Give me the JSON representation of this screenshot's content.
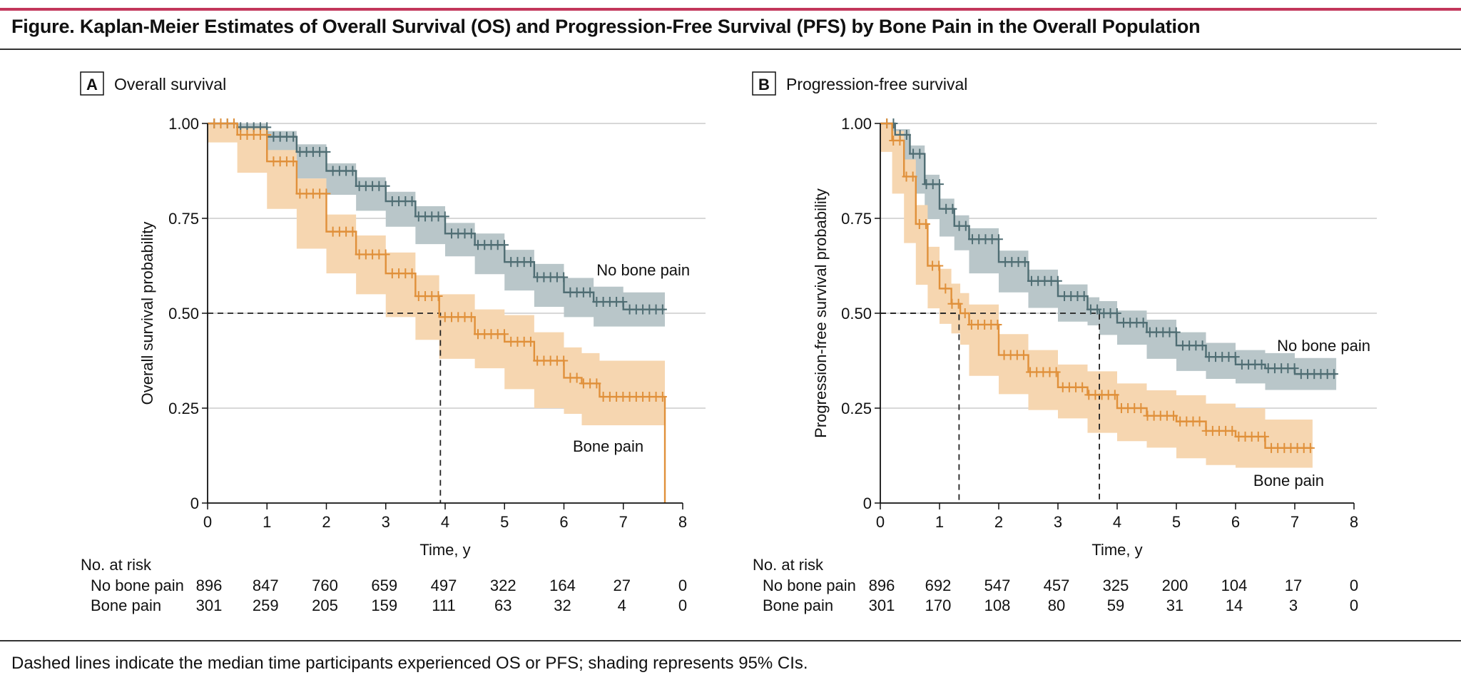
{
  "figure": {
    "title": "Figure. Kaplan-Meier Estimates of Overall Survival (OS) and Progression-Free Survival (PFS) by Bone Pain in the Overall Population",
    "footnote": "Dashed lines indicate the median time participants experienced OS or PFS; shading represents 95% CIs."
  },
  "colors": {
    "accent_rule": "#c2375b",
    "no_bone_pain": "#4f6d73",
    "no_bone_pain_ci": "#b9c6c9",
    "bone_pain": "#e0903a",
    "bone_pain_ci": "#f6d6b0",
    "grid": "#cccccc"
  },
  "chart_data": [
    {
      "type": "line",
      "panel_letter": "A",
      "title": "Overall survival",
      "xlabel": "Time, y",
      "ylabel": "Overall survival probability",
      "xlim": [
        0,
        8
      ],
      "ylim": [
        0,
        1
      ],
      "x_ticks": [
        "0",
        "1",
        "2",
        "3",
        "4",
        "5",
        "6",
        "7",
        "8"
      ],
      "y_ticks": [
        "0",
        "0.25",
        "0.50",
        "0.75",
        "1.00"
      ],
      "grid": "horizontal",
      "series": [
        {
          "name": "No bone pain",
          "label_pos": [
            6.55,
            0.6
          ],
          "x": [
            0,
            0.5,
            1.0,
            1.5,
            2.0,
            2.5,
            3.0,
            3.5,
            4.0,
            4.5,
            5.0,
            5.5,
            6.0,
            6.5,
            7.0,
            7.4,
            7.7
          ],
          "y": [
            1.0,
            0.99,
            0.965,
            0.925,
            0.875,
            0.835,
            0.795,
            0.755,
            0.71,
            0.68,
            0.635,
            0.595,
            0.555,
            0.53,
            0.51,
            0.51,
            0.51
          ],
          "ci_lower": [
            1.0,
            0.98,
            0.95,
            0.905,
            0.855,
            0.812,
            0.77,
            0.728,
            0.682,
            0.65,
            0.603,
            0.56,
            0.517,
            0.49,
            0.465,
            0.465,
            0.465
          ],
          "ci_upper": [
            1.0,
            1.0,
            0.98,
            0.945,
            0.895,
            0.858,
            0.82,
            0.782,
            0.738,
            0.71,
            0.667,
            0.63,
            0.593,
            0.57,
            0.555,
            0.555,
            0.555
          ]
        },
        {
          "name": "Bone pain",
          "label_pos": [
            6.15,
            0.135
          ],
          "x": [
            0,
            0.5,
            1.0,
            1.5,
            2.0,
            2.5,
            3.0,
            3.5,
            3.9,
            4.5,
            5.0,
            5.5,
            6.0,
            6.3,
            6.6,
            7.0,
            7.4,
            7.7
          ],
          "y": [
            1.0,
            0.97,
            0.9,
            0.815,
            0.715,
            0.655,
            0.605,
            0.545,
            0.49,
            0.445,
            0.425,
            0.375,
            0.33,
            0.315,
            0.28,
            0.28,
            0.28,
            0.28
          ],
          "ci_lower": [
            1.0,
            0.95,
            0.87,
            0.775,
            0.67,
            0.605,
            0.55,
            0.49,
            0.43,
            0.38,
            0.355,
            0.3,
            0.25,
            0.235,
            0.205,
            0.205,
            0.205,
            0.205
          ],
          "ci_upper": [
            1.0,
            0.99,
            0.93,
            0.855,
            0.76,
            0.705,
            0.66,
            0.6,
            0.55,
            0.51,
            0.495,
            0.45,
            0.41,
            0.395,
            0.375,
            0.375,
            0.375,
            0.375
          ],
          "drop_to_zero_at": 7.7
        }
      ],
      "medians": [
        3.92
      ],
      "at_risk": {
        "header": "No. at risk",
        "rows": [
          {
            "label": "No bone pain",
            "values": [
              "896",
              "847",
              "760",
              "659",
              "497",
              "322",
              "164",
              "27",
              "0"
            ]
          },
          {
            "label": "Bone pain",
            "values": [
              "301",
              "259",
              "205",
              "159",
              "111",
              "63",
              "32",
              "4",
              "0"
            ]
          }
        ]
      }
    },
    {
      "type": "line",
      "panel_letter": "B",
      "title": "Progression-free survival",
      "xlabel": "Time, y",
      "ylabel": "Progression-free survival probability",
      "xlim": [
        0,
        8
      ],
      "ylim": [
        0,
        1
      ],
      "x_ticks": [
        "0",
        "1",
        "2",
        "3",
        "4",
        "5",
        "6",
        "7",
        "8"
      ],
      "y_ticks": [
        "0",
        "0.25",
        "0.50",
        "0.75",
        "1.00"
      ],
      "grid": "horizontal",
      "series": [
        {
          "name": "No bone pain",
          "label_pos": [
            6.7,
            0.4
          ],
          "x": [
            0,
            0.25,
            0.5,
            0.75,
            1.0,
            1.25,
            1.5,
            2.0,
            2.5,
            3.0,
            3.5,
            3.7,
            4.0,
            4.5,
            5.0,
            5.5,
            6.0,
            6.5,
            7.0,
            7.3,
            7.7
          ],
          "y": [
            1.0,
            0.97,
            0.92,
            0.84,
            0.775,
            0.73,
            0.695,
            0.635,
            0.585,
            0.545,
            0.51,
            0.5,
            0.475,
            0.45,
            0.415,
            0.385,
            0.365,
            0.355,
            0.34,
            0.34,
            0.34
          ],
          "ci_lower": [
            1.0,
            0.955,
            0.898,
            0.815,
            0.748,
            0.702,
            0.666,
            0.605,
            0.555,
            0.514,
            0.478,
            0.468,
            0.443,
            0.417,
            0.38,
            0.348,
            0.327,
            0.315,
            0.298,
            0.298,
            0.298
          ],
          "ci_upper": [
            1.0,
            0.985,
            0.942,
            0.865,
            0.802,
            0.758,
            0.724,
            0.665,
            0.615,
            0.576,
            0.542,
            0.532,
            0.507,
            0.483,
            0.45,
            0.422,
            0.403,
            0.395,
            0.382,
            0.382,
            0.382
          ]
        },
        {
          "name": "Bone pain",
          "label_pos": [
            6.3,
            0.045
          ],
          "x": [
            0,
            0.2,
            0.4,
            0.6,
            0.8,
            1.0,
            1.2,
            1.35,
            1.5,
            2.0,
            2.5,
            3.0,
            3.5,
            4.0,
            4.5,
            5.0,
            5.5,
            6.0,
            6.5,
            7.0,
            7.3
          ],
          "y": [
            1.0,
            0.955,
            0.86,
            0.735,
            0.625,
            0.565,
            0.525,
            0.5,
            0.47,
            0.39,
            0.345,
            0.305,
            0.285,
            0.25,
            0.23,
            0.215,
            0.19,
            0.175,
            0.145,
            0.145,
            0.145
          ],
          "ci_lower": [
            1.0,
            0.925,
            0.815,
            0.685,
            0.575,
            0.513,
            0.472,
            0.447,
            0.417,
            0.335,
            0.287,
            0.245,
            0.223,
            0.185,
            0.163,
            0.146,
            0.118,
            0.1,
            0.093,
            0.093,
            0.093
          ],
          "ci_upper": [
            1.0,
            0.98,
            0.905,
            0.785,
            0.675,
            0.617,
            0.578,
            0.553,
            0.523,
            0.445,
            0.403,
            0.365,
            0.347,
            0.315,
            0.297,
            0.284,
            0.262,
            0.25,
            0.22,
            0.22,
            0.22
          ]
        }
      ],
      "medians": [
        1.33,
        3.7
      ],
      "at_risk": {
        "header": "No. at risk",
        "rows": [
          {
            "label": "No bone pain",
            "values": [
              "896",
              "692",
              "547",
              "457",
              "325",
              "200",
              "104",
              "17",
              "0"
            ]
          },
          {
            "label": "Bone pain",
            "values": [
              "301",
              "170",
              "108",
              "80",
              "59",
              "31",
              "14",
              "3",
              "0"
            ]
          }
        ]
      }
    }
  ]
}
